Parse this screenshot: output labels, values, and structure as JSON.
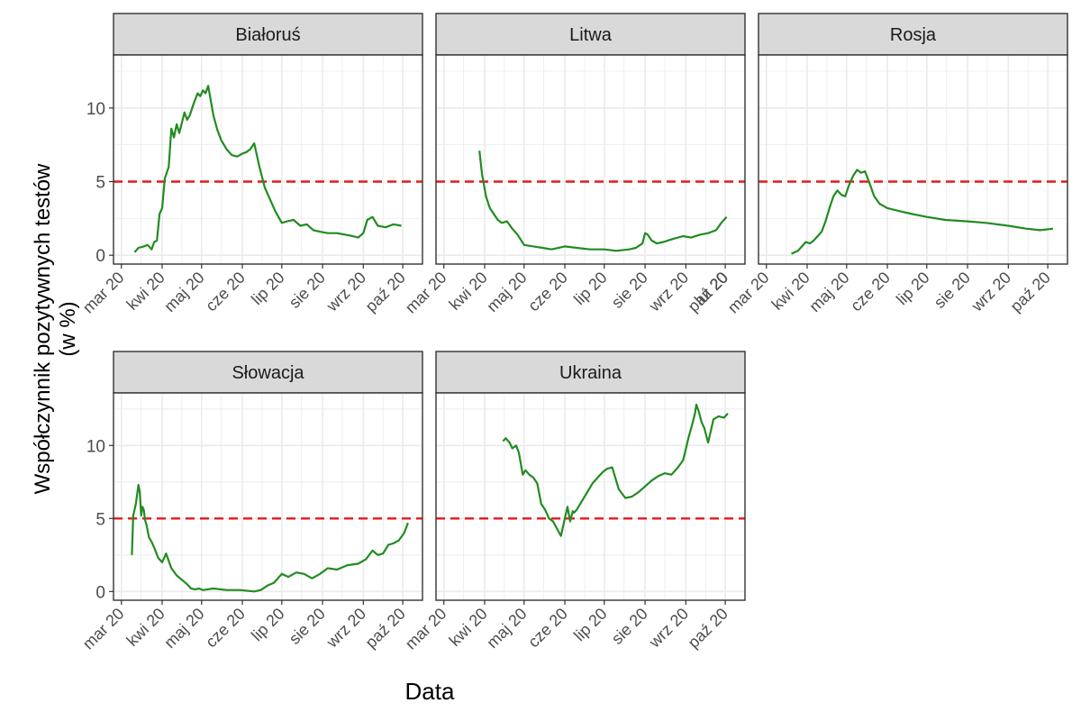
{
  "figure": {
    "ylabel_line1": "Współczynnik pozytywnych testów",
    "ylabel_line2": "(w %)",
    "xlabel": "Data",
    "colors": {
      "line": "#228b22",
      "threshold": "#e31a1c",
      "strip_bg": "#d9d9d9",
      "grid": "#ebebeb",
      "frame": "#333333"
    }
  },
  "chart_data": {
    "type": "line",
    "xlim": [
      "2020-02-24",
      "2020-10-16"
    ],
    "ylim": [
      -0.6,
      13.6
    ],
    "yticks": [
      0,
      5,
      10
    ],
    "threshold": 5,
    "grid": true,
    "legend": "none",
    "panels": [
      {
        "title": "Białoruś",
        "xticks": [
          "mar 20",
          "kwi 20",
          "maj 20",
          "cze 20",
          "lip 20",
          "sie 20",
          "wrz 20",
          "paź 20"
        ],
        "x": [
          "2020-03-11",
          "2020-03-14",
          "2020-03-18",
          "2020-03-21",
          "2020-03-24",
          "2020-03-26",
          "2020-03-28",
          "2020-03-30",
          "2020-04-01",
          "2020-04-03",
          "2020-04-06",
          "2020-04-08",
          "2020-04-10",
          "2020-04-12",
          "2020-04-14",
          "2020-04-16",
          "2020-04-18",
          "2020-04-20",
          "2020-04-22",
          "2020-04-25",
          "2020-04-28",
          "2020-04-30",
          "2020-05-02",
          "2020-05-04",
          "2020-05-06",
          "2020-05-08",
          "2020-05-10",
          "2020-05-13",
          "2020-05-16",
          "2020-05-20",
          "2020-05-24",
          "2020-05-28",
          "2020-06-01",
          "2020-06-04",
          "2020-06-07",
          "2020-06-10",
          "2020-06-14",
          "2020-06-18",
          "2020-06-22",
          "2020-06-26",
          "2020-07-01",
          "2020-07-05",
          "2020-07-10",
          "2020-07-15",
          "2020-07-20",
          "2020-07-25",
          "2020-07-30",
          "2020-08-05",
          "2020-08-12",
          "2020-08-18",
          "2020-08-24",
          "2020-08-28",
          "2020-09-01",
          "2020-09-04",
          "2020-09-08",
          "2020-09-12",
          "2020-09-18",
          "2020-09-24",
          "2020-09-30"
        ],
        "y": [
          0.2,
          0.5,
          0.6,
          0.7,
          0.4,
          0.9,
          1.0,
          2.8,
          3.2,
          5.2,
          6.0,
          8.6,
          8.0,
          8.9,
          8.3,
          9.0,
          9.7,
          9.2,
          9.5,
          10.3,
          11.0,
          10.8,
          11.2,
          11.0,
          11.5,
          10.5,
          9.5,
          8.5,
          7.8,
          7.2,
          6.8,
          6.7,
          6.9,
          7.0,
          7.2,
          7.6,
          6.0,
          4.6,
          3.8,
          3.0,
          2.2,
          2.3,
          2.4,
          2.0,
          2.1,
          1.7,
          1.6,
          1.5,
          1.5,
          1.4,
          1.3,
          1.2,
          1.5,
          2.4,
          2.6,
          2.0,
          1.9,
          2.1,
          2.0
        ]
      },
      {
        "title": "Litwa",
        "xticks": [
          "mar 20",
          "kwi 20",
          "maj 20",
          "cze 20",
          "lip 20",
          "sie 20",
          "wrz 20",
          "paź 20"
        ],
        "x": [
          "2020-03-28",
          "2020-03-30",
          "2020-04-02",
          "2020-04-05",
          "2020-04-08",
          "2020-04-11",
          "2020-04-14",
          "2020-04-18",
          "2020-04-22",
          "2020-04-26",
          "2020-05-01",
          "2020-05-08",
          "2020-05-15",
          "2020-05-22",
          "2020-06-01",
          "2020-06-10",
          "2020-06-20",
          "2020-07-01",
          "2020-07-10",
          "2020-07-20",
          "2020-07-25",
          "2020-07-30",
          "2020-08-01",
          "2020-08-03",
          "2020-08-06",
          "2020-08-10",
          "2020-08-15",
          "2020-08-22",
          "2020-08-30",
          "2020-09-05",
          "2020-09-12",
          "2020-09-18",
          "2020-09-24",
          "2020-09-28",
          "2020-10-02"
        ],
        "y": [
          7.1,
          5.5,
          4.0,
          3.2,
          2.8,
          2.4,
          2.2,
          2.3,
          1.8,
          1.4,
          0.7,
          0.6,
          0.5,
          0.4,
          0.6,
          0.5,
          0.4,
          0.4,
          0.3,
          0.4,
          0.5,
          0.8,
          1.5,
          1.4,
          1.0,
          0.8,
          0.9,
          1.1,
          1.3,
          1.2,
          1.4,
          1.5,
          1.7,
          2.2,
          2.6
        ]
      },
      {
        "title": "Rosja",
        "xticks": [
          "lut 20",
          "mar 20",
          "kwi 20",
          "maj 20",
          "cze 20",
          "lip 20",
          "sie 20",
          "wrz 20",
          "paź 20"
        ],
        "x": [
          "2020-03-20",
          "2020-03-25",
          "2020-03-28",
          "2020-03-31",
          "2020-04-03",
          "2020-04-06",
          "2020-04-09",
          "2020-04-12",
          "2020-04-15",
          "2020-04-18",
          "2020-04-21",
          "2020-04-24",
          "2020-04-27",
          "2020-04-30",
          "2020-05-03",
          "2020-05-06",
          "2020-05-09",
          "2020-05-12",
          "2020-05-15",
          "2020-05-18",
          "2020-05-22",
          "2020-05-26",
          "2020-06-01",
          "2020-06-10",
          "2020-06-20",
          "2020-07-01",
          "2020-07-15",
          "2020-08-01",
          "2020-08-15",
          "2020-09-01",
          "2020-09-15",
          "2020-09-25",
          "2020-10-05"
        ],
        "y": [
          0.1,
          0.3,
          0.6,
          0.9,
          0.8,
          1.0,
          1.3,
          1.6,
          2.3,
          3.2,
          4.0,
          4.4,
          4.1,
          4.0,
          4.8,
          5.4,
          5.8,
          5.6,
          5.7,
          5.0,
          4.0,
          3.5,
          3.2,
          3.0,
          2.8,
          2.6,
          2.4,
          2.3,
          2.2,
          2.0,
          1.8,
          1.7,
          1.8
        ]
      },
      {
        "title": "Słowacja",
        "xticks": [
          "mar 20",
          "kwi 20",
          "maj 20",
          "cze 20",
          "lip 20",
          "sie 20",
          "wrz 20",
          "paź 20"
        ],
        "x": [
          "2020-03-09",
          "2020-03-10",
          "2020-03-12",
          "2020-03-14",
          "2020-03-15",
          "2020-03-16",
          "2020-03-17",
          "2020-03-18",
          "2020-03-19",
          "2020-03-20",
          "2020-03-22",
          "2020-03-24",
          "2020-03-26",
          "2020-03-29",
          "2020-04-01",
          "2020-04-04",
          "2020-04-08",
          "2020-04-12",
          "2020-04-16",
          "2020-04-20",
          "2020-04-23",
          "2020-04-26",
          "2020-04-29",
          "2020-05-02",
          "2020-05-10",
          "2020-05-20",
          "2020-05-30",
          "2020-06-10",
          "2020-06-15",
          "2020-06-20",
          "2020-06-25",
          "2020-07-01",
          "2020-07-06",
          "2020-07-12",
          "2020-07-18",
          "2020-07-24",
          "2020-07-30",
          "2020-08-05",
          "2020-08-12",
          "2020-08-20",
          "2020-08-28",
          "2020-09-03",
          "2020-09-08",
          "2020-09-12",
          "2020-09-16",
          "2020-09-20",
          "2020-09-24",
          "2020-09-28",
          "2020-10-02",
          "2020-10-05"
        ],
        "y": [
          2.5,
          5.2,
          6.0,
          7.3,
          6.8,
          5.2,
          5.8,
          5.6,
          4.9,
          4.6,
          3.7,
          3.4,
          3.0,
          2.3,
          2.0,
          2.6,
          1.6,
          1.1,
          0.8,
          0.5,
          0.2,
          0.15,
          0.2,
          0.1,
          0.2,
          0.1,
          0.1,
          0.0,
          0.1,
          0.4,
          0.6,
          1.2,
          1.0,
          1.3,
          1.2,
          0.9,
          1.2,
          1.6,
          1.5,
          1.8,
          1.9,
          2.2,
          2.8,
          2.5,
          2.6,
          3.2,
          3.3,
          3.5,
          4.0,
          4.7
        ]
      },
      {
        "title": "Ukraina",
        "xticks": [
          "mar 20",
          "kwi 20",
          "maj 20",
          "cze 20",
          "lip 20",
          "sie 20",
          "wrz 20",
          "paź 20"
        ],
        "x": [
          "2020-04-15",
          "2020-04-17",
          "2020-04-20",
          "2020-04-22",
          "2020-04-25",
          "2020-04-27",
          "2020-04-30",
          "2020-05-02",
          "2020-05-05",
          "2020-05-08",
          "2020-05-11",
          "2020-05-14",
          "2020-05-17",
          "2020-05-20",
          "2020-05-23",
          "2020-05-26",
          "2020-05-29",
          "2020-06-01",
          "2020-06-03",
          "2020-06-05",
          "2020-06-07",
          "2020-06-08",
          "2020-06-10",
          "2020-06-14",
          "2020-06-18",
          "2020-06-22",
          "2020-06-26",
          "2020-06-30",
          "2020-07-03",
          "2020-07-07",
          "2020-07-12",
          "2020-07-17",
          "2020-07-22",
          "2020-07-27",
          "2020-08-01",
          "2020-08-06",
          "2020-08-11",
          "2020-08-16",
          "2020-08-21",
          "2020-08-26",
          "2020-08-30",
          "2020-09-03",
          "2020-09-06",
          "2020-09-08",
          "2020-09-09",
          "2020-09-11",
          "2020-09-13",
          "2020-09-15",
          "2020-09-18",
          "2020-09-22",
          "2020-09-26",
          "2020-09-30",
          "2020-10-03"
        ],
        "y": [
          10.3,
          10.5,
          10.2,
          9.8,
          10.0,
          9.5,
          8.0,
          8.3,
          8.0,
          7.8,
          7.4,
          6.0,
          5.6,
          5.0,
          4.8,
          4.3,
          3.8,
          5.0,
          5.8,
          4.8,
          5.5,
          5.4,
          5.6,
          6.2,
          6.8,
          7.4,
          7.8,
          8.2,
          8.4,
          8.5,
          7.0,
          6.4,
          6.5,
          6.8,
          7.2,
          7.6,
          7.9,
          8.1,
          8.0,
          8.5,
          9.0,
          10.5,
          11.5,
          12.2,
          12.8,
          12.3,
          11.6,
          11.2,
          10.2,
          11.8,
          12.0,
          11.9,
          12.2
        ]
      }
    ]
  }
}
